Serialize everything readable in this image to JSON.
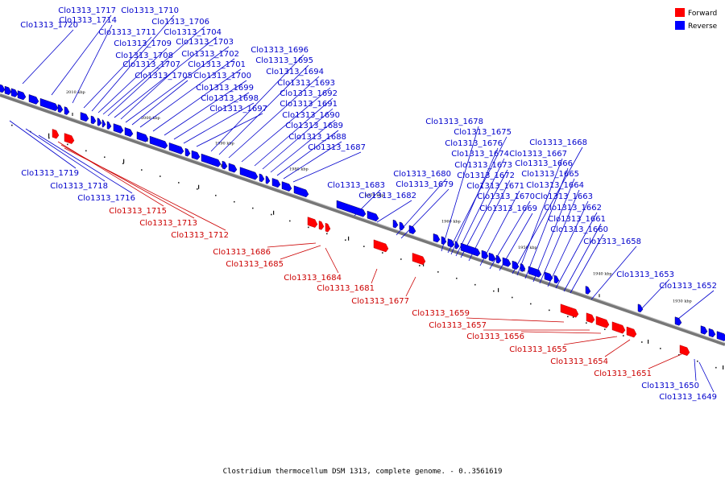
{
  "legend": {
    "items": [
      {
        "label": "Forward",
        "color": "#ff0000"
      },
      {
        "label": "Reverse",
        "color": "#0000ff"
      }
    ]
  },
  "caption": "Clostridium thermocellum DSM 1313, complete genome. - 0..3561619",
  "scale": {
    "ticks": [
      "2010 kbp",
      "2000 kbp",
      "1990 kbp",
      "1980 kbp",
      "1970 kbp",
      "1960 kbp",
      "1950 kbp",
      "1940 kbp",
      "1930 kbp"
    ]
  },
  "genes_reverse": [
    "Clo1313_1720",
    "Clo1313_1717",
    "Clo1313_1714",
    "Clo1313_1711",
    "Clo1313_1710",
    "Clo1313_1709",
    "Clo1313_1706",
    "Clo1313_1708",
    "Clo1313_1704",
    "Clo1313_1707",
    "Clo1313_1703",
    "Clo1313_1705",
    "Clo1313_1702",
    "Clo1313_1701",
    "Clo1313_1700",
    "Clo1313_1699",
    "Clo1313_1698",
    "Clo1313_1697",
    "Clo1313_1696",
    "Clo1313_1695",
    "Clo1313_1694",
    "Clo1313_1693",
    "Clo1313_1692",
    "Clo1313_1691",
    "Clo1313_1690",
    "Clo1313_1689",
    "Clo1313_1688",
    "Clo1313_1687",
    "Clo1313_1683",
    "Clo1313_1682",
    "Clo1313_1680",
    "Clo1313_1679",
    "Clo1313_1678",
    "Clo1313_1675",
    "Clo1313_1676",
    "Clo1313_1674",
    "Clo1313_1673",
    "Clo1313_1672",
    "Clo1313_1671",
    "Clo1313_1670",
    "Clo1313_1669",
    "Clo1313_1668",
    "Clo1313_1667",
    "Clo1313_1666",
    "Clo1313_1665",
    "Clo1313_1664",
    "Clo1313_1663",
    "Clo1313_1662",
    "Clo1313_1661",
    "Clo1313_1660",
    "Clo1313_1658",
    "Clo1313_1653",
    "Clo1313_1652",
    "Clo1313_1719",
    "Clo1313_1718",
    "Clo1313_1716",
    "Clo1313_1650",
    "Clo1313_1649"
  ],
  "genes_forward": [
    "Clo1313_1715",
    "Clo1313_1713",
    "Clo1313_1712",
    "Clo1313_1686",
    "Clo1313_1685",
    "Clo1313_1684",
    "Clo1313_1681",
    "Clo1313_1677",
    "Clo1313_1659",
    "Clo1313_1657",
    "Clo1313_1656",
    "Clo1313_1655",
    "Clo1313_1654",
    "Clo1313_1651"
  ]
}
